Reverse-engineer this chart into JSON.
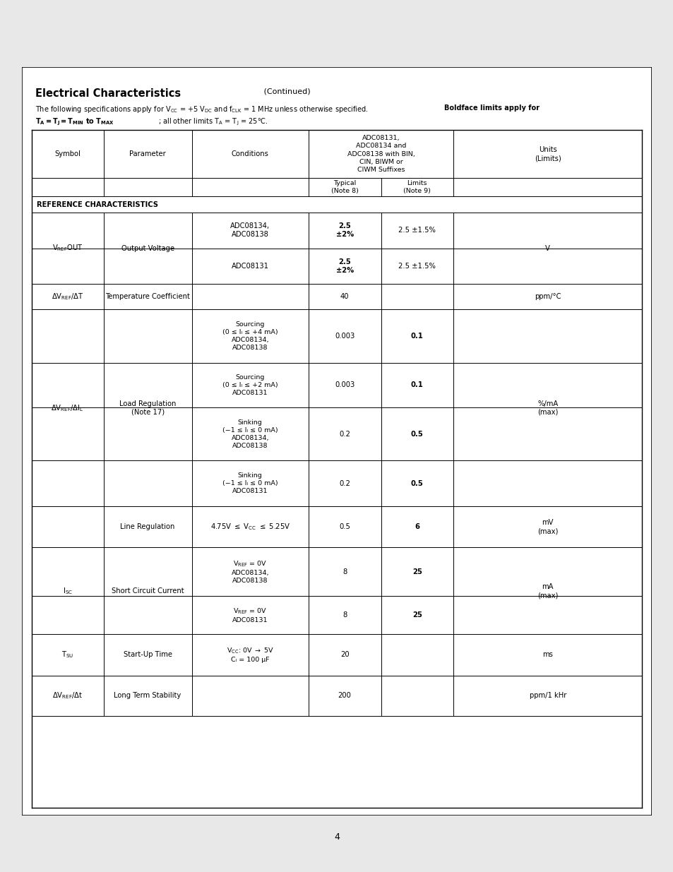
{
  "page_bg": "#e8e8e8",
  "content_bg": "#ffffff",
  "title": "Electrical Characteristics",
  "title_continued": "(Continued)",
  "sub1": "The following specifications apply for V",
  "sub1_rest": " = +5 V",
  "sub2_bold": "Boldface limits apply for",
  "sub3_bold": "T",
  "sub3_rest": "; all other limits T",
  "col_header_adc": "ADC08131,\nADC08134 and\nADC08138 with BIN,\nCIN, BIWM or\nCIWM Suffixes",
  "col_headers": [
    "Symbol",
    "Parameter",
    "Conditions",
    "Typical\n(Note 8)",
    "Limits\n(Note 9)",
    "Units\n(Limits)"
  ],
  "section_header": "REFERENCE CHARACTERISTICS",
  "page_num": "4",
  "rows": [
    {
      "sym": "V_REF_OUT",
      "param": "Output Voltage",
      "cond": "ADC08134,\nADC08138",
      "typ": "2.5\n±2%",
      "typ_bold": true,
      "lim": "2.5 ±1.5%",
      "lim_bold": false,
      "units": "V",
      "sym_span": 2,
      "param_span": 2,
      "units_span": 2
    },
    {
      "sym": "",
      "param": "",
      "cond": "ADC08131",
      "typ": "2.5\n±2%",
      "typ_bold": true,
      "lim": "2.5 ±1.5%",
      "lim_bold": false,
      "units": ""
    },
    {
      "sym": "DV_REF_DT",
      "param": "Temperature Coefficient",
      "cond": "",
      "typ": "40",
      "typ_bold": false,
      "lim": "",
      "lim_bold": false,
      "units": "ppm/°C"
    },
    {
      "sym": "DV_REF_DIL",
      "param": "Load Regulation\n(Note 17)",
      "cond": "Sourcing\n(0 ≤ Iₗ ≤ +4 mA)\nADC08134,\nADC08138",
      "typ": "0.003",
      "typ_bold": false,
      "lim": "0.1",
      "lim_bold": true,
      "units": "%/mA\n(max)",
      "sym_span": 4,
      "param_span": 4,
      "units_span": 4
    },
    {
      "sym": "",
      "param": "",
      "cond": "Sourcing\n(0 ≤ Iₗ ≤ +2 mA)\nADC08131",
      "typ": "0.003",
      "typ_bold": false,
      "lim": "0.1",
      "lim_bold": true,
      "units": ""
    },
    {
      "sym": "",
      "param": "",
      "cond": "Sinking\n(−1 ≤ Iₗ ≤ 0 mA)\nADC08134,\nADC08138",
      "typ": "0.2",
      "typ_bold": false,
      "lim": "0.5",
      "lim_bold": true,
      "units": ""
    },
    {
      "sym": "",
      "param": "",
      "cond": "Sinking\n(−1 ≤ Iₗ ≤ 0 mA)\nADC08131",
      "typ": "0.2",
      "typ_bold": false,
      "lim": "0.5",
      "lim_bold": true,
      "units": ""
    },
    {
      "sym": "",
      "param": "Line Regulation",
      "cond": "4.75V ≤ V_CC ≤ 5.25V",
      "typ": "0.5",
      "typ_bold": false,
      "lim": "6",
      "lim_bold": true,
      "units": "mV\n(max)"
    },
    {
      "sym": "I_SC",
      "param": "Short Circuit Current",
      "cond": "V_REF_0V\nADC08134,\nADC08138",
      "typ": "8",
      "typ_bold": false,
      "lim": "25",
      "lim_bold": true,
      "units": "mA\n(max)",
      "sym_span": 2,
      "param_span": 2,
      "units_span": 2
    },
    {
      "sym": "",
      "param": "",
      "cond": "V_REF_0V\nADC08131",
      "typ": "8",
      "typ_bold": false,
      "lim": "25",
      "lim_bold": true,
      "units": ""
    },
    {
      "sym": "T_SU",
      "param": "Start-Up Time",
      "cond": "V_CC_0V5V\nC_L_100uF",
      "typ": "20",
      "typ_bold": false,
      "lim": "",
      "lim_bold": false,
      "units": "ms"
    },
    {
      "sym": "DV_REF_Dt",
      "param": "Long Term Stability",
      "cond": "",
      "typ": "200",
      "typ_bold": false,
      "lim": "",
      "lim_bold": false,
      "units": "ppm/1 kHr"
    }
  ]
}
